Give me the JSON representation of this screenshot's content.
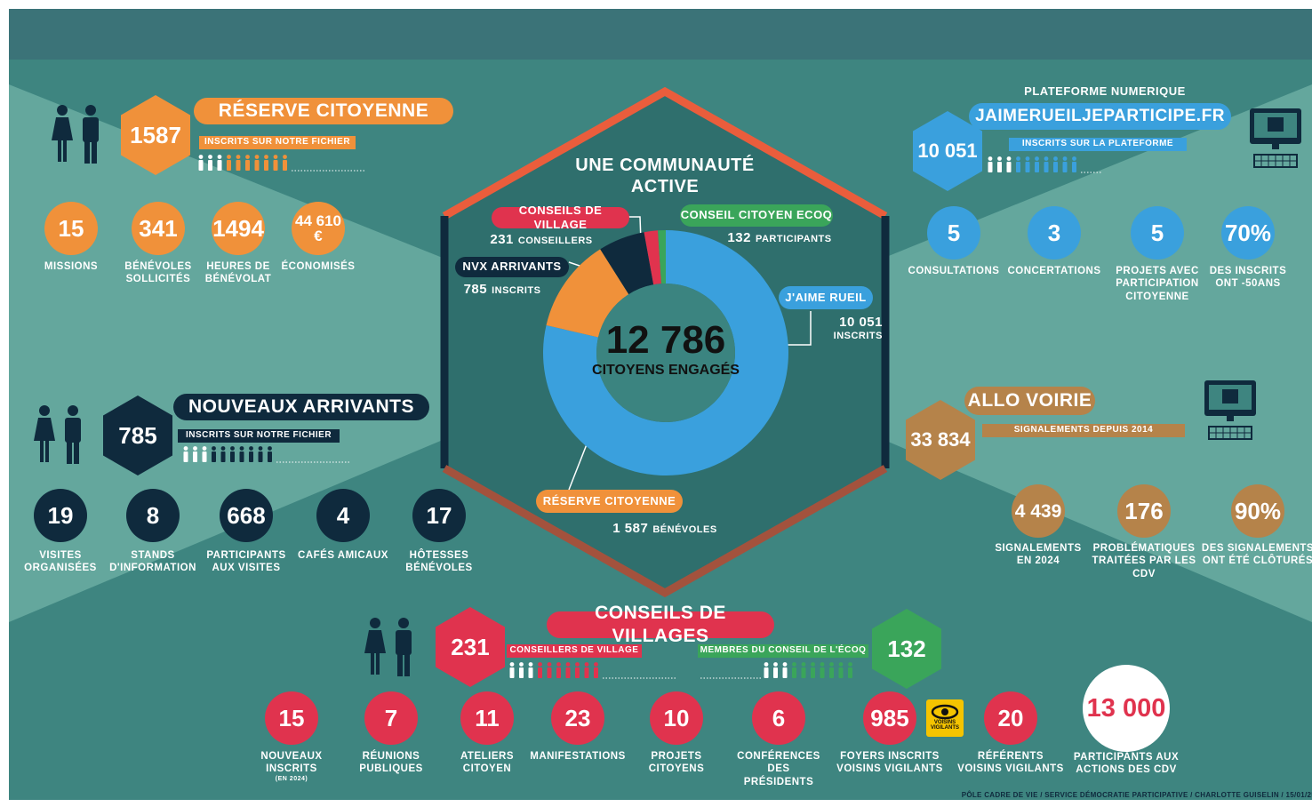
{
  "footer": "PÔLE CADRE DE VIE / SERVICE DÉMOCRATIE PARTICIPATIVE / CHARLOTTE GUISELIN / 15/01/25",
  "center": {
    "title": "UNE COMMUNAUTÉ\nACTIVE",
    "total": "12 786",
    "total_label": "CITOYENS ENGAGÉS",
    "segments": [
      {
        "name": "J'AIME RUEIL",
        "value": 10051,
        "value_label": "10 051",
        "unit": "INSCRITS",
        "color": "#3aa0dd"
      },
      {
        "name": "RÉSERVE CITOYENNE",
        "value": 1587,
        "value_label": "1 587",
        "unit": "BÉNÉVOLES",
        "color": "#f0913a"
      },
      {
        "name": "NVX ARRIVANTS",
        "value": 785,
        "unit": "INSCRITS",
        "color": "#0f2a3d"
      },
      {
        "name": "CONSEILS DE VILLAGE",
        "value": 231,
        "unit": "CONSEILLERS",
        "color": "#e0334e"
      },
      {
        "name": "CONSEIL CITOYEN ECOQ",
        "value": 132,
        "unit": "PARTICIPANTS",
        "color": "#3aa55a"
      }
    ]
  },
  "reserve": {
    "title": "RÉSERVE CITOYENNE",
    "count": "1587",
    "subtitle": "INSCRITS SUR NOTRE FICHIER",
    "stats": [
      {
        "value": "15",
        "label": "MISSIONS"
      },
      {
        "value": "341",
        "label": "BÉNÉVOLES\nSOLLICITÉS"
      },
      {
        "value": "1494",
        "label": "HEURES DE\nBÉNÉVOLAT"
      },
      {
        "value": "44 610\n€",
        "label": "ÉCONOMISÉS"
      }
    ]
  },
  "arrivants": {
    "title": "NOUVEAUX ARRIVANTS",
    "count": "785",
    "subtitle": "INSCRITS SUR NOTRE FICHIER",
    "stats": [
      {
        "value": "19",
        "label": "VISITES\nORGANISÉES"
      },
      {
        "value": "8",
        "label": "STANDS\nD'INFORMATION"
      },
      {
        "value": "668",
        "label": "PARTICIPANTS\nAUX VISITES"
      },
      {
        "value": "4",
        "label": "CAFÉS AMICAUX"
      },
      {
        "value": "17",
        "label": "HÔTESSES\nBÉNÉVOLES"
      }
    ]
  },
  "plateforme": {
    "kicker": "PLATEFORME NUMERIQUE",
    "title": "JAIMERUEILJEPARTICIPE.FR",
    "count": "10 051",
    "subtitle": "INSCRITS SUR LA PLATEFORME",
    "stats": [
      {
        "value": "5",
        "label": "CONSULTATIONS"
      },
      {
        "value": "3",
        "label": "CONCERTATIONS"
      },
      {
        "value": "5",
        "label": "PROJETS AVEC\nPARTICIPATION\nCITOYENNE"
      },
      {
        "value": "70%",
        "label": "DES INSCRITS\nONT -50ANS"
      }
    ]
  },
  "voirie": {
    "title": "ALLO VOIRIE",
    "count": "33 834",
    "subtitle": "SIGNALEMENTS DEPUIS 2014",
    "stats": [
      {
        "value": "4 439",
        "label": "SIGNALEMENTS\nEN 2024"
      },
      {
        "value": "176",
        "label": "PROBLÉMATIQUES\nTRAITÉES PAR LES\nCDV"
      },
      {
        "value": "90%",
        "label": "DES SIGNALEMENTS\nONT ÉTÉ CLÔTURÉS"
      }
    ]
  },
  "conseils": {
    "title": "CONSEILS DE VILLAGES",
    "count": "231",
    "subtitle": "CONSEILLERS DE VILLAGE",
    "ecoq_count": "132",
    "ecoq_subtitle": "MEMBRES DU CONSEIL DE L'ÉCOQ",
    "badge": "VOISINS\nVIGILANTS",
    "stats": [
      {
        "value": "15",
        "label": "NOUVEAUX\nINSCRITS",
        "note": "(EN 2024)"
      },
      {
        "value": "7",
        "label": "RÉUNIONS\nPUBLIQUES"
      },
      {
        "value": "11",
        "label": "ATELIERS\nCITOYEN"
      },
      {
        "value": "23",
        "label": "MANIFESTATIONS"
      },
      {
        "value": "10",
        "label": "PROJETS\nCITOYENS"
      },
      {
        "value": "6",
        "label": "CONFÉRENCES\nDES\nPRÉSIDENTS"
      },
      {
        "value": "985",
        "label": "FOYERS INSCRITS\nVOISINS VIGILANTS"
      },
      {
        "value": "20",
        "label": "RÉFÉRENTS\nVOISINS VIGILANTS"
      }
    ],
    "highlight": {
      "value": "13 000",
      "label": "PARTICIPANTS AUX\nACTIONS DES CDV"
    }
  }
}
